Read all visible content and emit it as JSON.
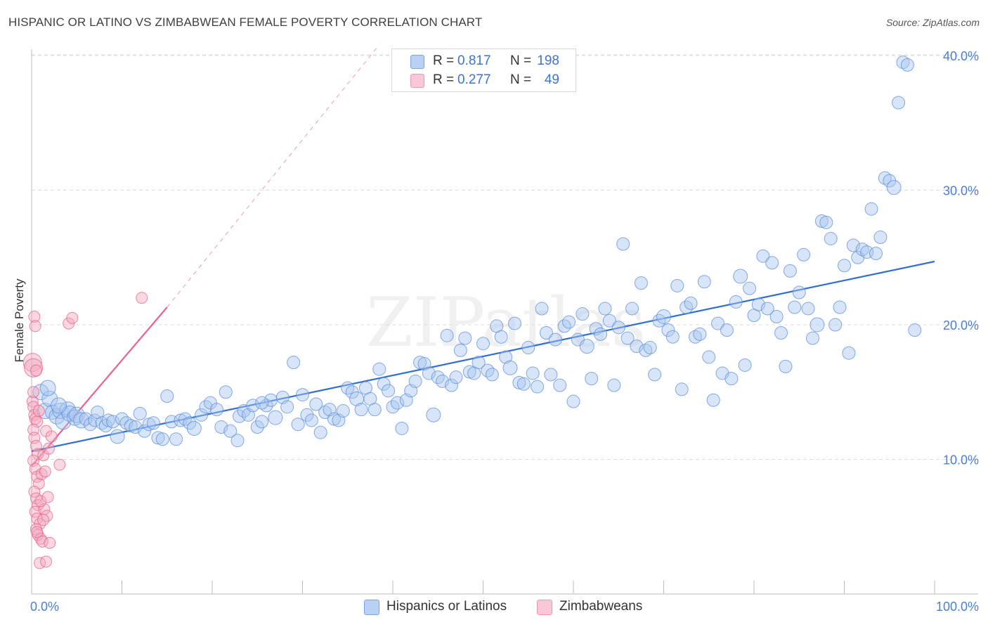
{
  "title": "HISPANIC OR LATINO VS ZIMBABWEAN FEMALE POVERTY CORRELATION CHART",
  "source": "Source: ZipAtlas.com",
  "watermark": "ZIPatlas",
  "legend": {
    "rows": [
      {
        "r_label": "R =",
        "r_value": "0.817",
        "n_label": "N =",
        "n_value": "198",
        "color": "#8fb5ea"
      },
      {
        "r_label": "R =",
        "r_value": "0.277",
        "n_label": "N =",
        "n_value": "49",
        "color": "#f2a8be"
      }
    ]
  },
  "bottom_legend": {
    "hispanic": "Hispanics or Latinos",
    "zimbabwean": "Zimbabweans"
  },
  "chart_data": {
    "type": "scatter",
    "title": "HISPANIC OR LATINO VS ZIMBABWEAN FEMALE POVERTY CORRELATION CHART",
    "xlabel": "",
    "ylabel": "Female Poverty",
    "xlim": [
      0,
      100
    ],
    "ylim": [
      0,
      40
    ],
    "x_tick_labels": [
      "0.0%",
      "100.0%"
    ],
    "y_ticks": [
      10,
      20,
      30,
      40
    ],
    "y_tick_labels": [
      "10.0%",
      "20.0%",
      "30.0%",
      "40.0%"
    ],
    "grid": true,
    "legend_position": "top-center",
    "series": [
      {
        "name": "Hispanics or Latinos",
        "color": "#5b8fd9",
        "fill": "#a9c6f0",
        "R": 0.817,
        "N": 198,
        "trend": {
          "x0": 0,
          "y0": 10.6,
          "x1": 100,
          "y1": 24.7,
          "dashed_extension": false
        },
        "points": [
          [
            1.0,
            15.0
          ],
          [
            1.5,
            13.6
          ],
          [
            2.0,
            14.5
          ],
          [
            2.3,
            13.5
          ],
          [
            2.8,
            13.2
          ],
          [
            3.2,
            13.6
          ],
          [
            3.5,
            12.8
          ],
          [
            4.0,
            13.7
          ],
          [
            4.2,
            13.4
          ],
          [
            4.8,
            13.1
          ],
          [
            5.0,
            13.3
          ],
          [
            5.5,
            12.9
          ],
          [
            6.0,
            13.0
          ],
          [
            6.5,
            12.6
          ],
          [
            7.0,
            12.9
          ],
          [
            7.3,
            13.5
          ],
          [
            7.8,
            12.7
          ],
          [
            8.2,
            12.5
          ],
          [
            8.5,
            12.9
          ],
          [
            9.0,
            12.8
          ],
          [
            9.5,
            11.7
          ],
          [
            10.0,
            13.0
          ],
          [
            10.5,
            12.7
          ],
          [
            11.0,
            12.5
          ],
          [
            11.5,
            12.4
          ],
          [
            12.0,
            13.4
          ],
          [
            12.5,
            12.1
          ],
          [
            13.0,
            12.6
          ],
          [
            13.5,
            12.7
          ],
          [
            14.0,
            11.6
          ],
          [
            14.5,
            11.5
          ],
          [
            15.0,
            14.7
          ],
          [
            15.5,
            12.8
          ],
          [
            16.0,
            11.5
          ],
          [
            16.5,
            12.9
          ],
          [
            17.0,
            13.0
          ],
          [
            17.5,
            12.7
          ],
          [
            18.0,
            12.3
          ],
          [
            18.8,
            13.3
          ],
          [
            19.3,
            13.9
          ],
          [
            19.8,
            14.2
          ],
          [
            20.5,
            13.7
          ],
          [
            21.0,
            12.4
          ],
          [
            21.5,
            15.0
          ],
          [
            22.0,
            12.1
          ],
          [
            22.8,
            11.4
          ],
          [
            23.0,
            13.2
          ],
          [
            23.5,
            13.6
          ],
          [
            24.0,
            13.3
          ],
          [
            24.5,
            14.0
          ],
          [
            25.0,
            12.4
          ],
          [
            25.5,
            12.8
          ],
          [
            26.0,
            14.0
          ],
          [
            26.5,
            14.4
          ],
          [
            27.0,
            13.1
          ],
          [
            27.8,
            14.6
          ],
          [
            28.3,
            13.9
          ],
          [
            29.0,
            17.2
          ],
          [
            29.5,
            12.6
          ],
          [
            30.0,
            14.8
          ],
          [
            30.5,
            13.3
          ],
          [
            31.0,
            12.9
          ],
          [
            31.5,
            14.1
          ],
          [
            32.0,
            12.0
          ],
          [
            32.5,
            13.5
          ],
          [
            33.0,
            13.7
          ],
          [
            33.5,
            13.0
          ],
          [
            34.0,
            12.9
          ],
          [
            34.5,
            13.6
          ],
          [
            35.0,
            15.3
          ],
          [
            35.5,
            15.0
          ],
          [
            36.0,
            14.5
          ],
          [
            36.5,
            13.7
          ],
          [
            37.0,
            15.3
          ],
          [
            37.5,
            14.5
          ],
          [
            38.0,
            13.7
          ],
          [
            38.5,
            16.7
          ],
          [
            39.0,
            15.6
          ],
          [
            39.5,
            15.1
          ],
          [
            40.0,
            13.9
          ],
          [
            40.5,
            14.2
          ],
          [
            41.0,
            12.3
          ],
          [
            41.5,
            14.4
          ],
          [
            42.0,
            15.1
          ],
          [
            42.5,
            15.8
          ],
          [
            43.0,
            17.2
          ],
          [
            43.5,
            17.1
          ],
          [
            44.0,
            16.4
          ],
          [
            44.5,
            13.3
          ],
          [
            45.0,
            16.1
          ],
          [
            45.5,
            15.8
          ],
          [
            46.0,
            19.2
          ],
          [
            46.5,
            15.5
          ],
          [
            47.0,
            16.1
          ],
          [
            47.5,
            18.1
          ],
          [
            48.0,
            19.0
          ],
          [
            48.5,
            16.5
          ],
          [
            49.0,
            16.4
          ],
          [
            49.5,
            17.2
          ],
          [
            50.0,
            18.6
          ],
          [
            50.5,
            16.6
          ],
          [
            51.0,
            16.3
          ],
          [
            51.5,
            19.9
          ],
          [
            52.0,
            19.1
          ],
          [
            52.5,
            17.6
          ],
          [
            53.0,
            16.8
          ],
          [
            53.5,
            20.1
          ],
          [
            54.0,
            15.7
          ],
          [
            54.5,
            15.6
          ],
          [
            55.0,
            18.3
          ],
          [
            55.5,
            16.4
          ],
          [
            56.0,
            15.4
          ],
          [
            56.5,
            21.2
          ],
          [
            57.0,
            19.4
          ],
          [
            57.5,
            16.3
          ],
          [
            58.0,
            18.9
          ],
          [
            58.5,
            15.5
          ],
          [
            59.0,
            19.9
          ],
          [
            59.5,
            20.2
          ],
          [
            60.0,
            14.3
          ],
          [
            60.5,
            18.9
          ],
          [
            61.0,
            20.8
          ],
          [
            61.5,
            18.4
          ],
          [
            62.0,
            16.0
          ],
          [
            62.5,
            19.7
          ],
          [
            63.0,
            19.3
          ],
          [
            63.5,
            21.2
          ],
          [
            64.0,
            20.3
          ],
          [
            64.5,
            15.5
          ],
          [
            65.0,
            19.8
          ],
          [
            65.5,
            26.0
          ],
          [
            66.0,
            19.0
          ],
          [
            66.5,
            21.2
          ],
          [
            67.0,
            18.4
          ],
          [
            67.5,
            23.1
          ],
          [
            68.0,
            18.1
          ],
          [
            68.5,
            18.3
          ],
          [
            69.0,
            16.3
          ],
          [
            69.5,
            20.3
          ],
          [
            70.0,
            20.6
          ],
          [
            70.5,
            19.6
          ],
          [
            71.0,
            19.1
          ],
          [
            71.5,
            22.9
          ],
          [
            72.0,
            15.2
          ],
          [
            72.5,
            21.3
          ],
          [
            73.0,
            21.6
          ],
          [
            73.5,
            19.1
          ],
          [
            74.0,
            19.3
          ],
          [
            74.5,
            23.2
          ],
          [
            75.0,
            17.6
          ],
          [
            75.5,
            14.4
          ],
          [
            76.0,
            20.1
          ],
          [
            76.5,
            16.4
          ],
          [
            77.0,
            19.6
          ],
          [
            77.5,
            16.0
          ],
          [
            78.0,
            21.7
          ],
          [
            78.5,
            23.6
          ],
          [
            79.0,
            17.0
          ],
          [
            79.5,
            22.7
          ],
          [
            80.0,
            20.7
          ],
          [
            80.5,
            21.5
          ],
          [
            81.0,
            25.1
          ],
          [
            81.5,
            21.2
          ],
          [
            82.0,
            24.6
          ],
          [
            82.5,
            20.6
          ],
          [
            83.0,
            19.4
          ],
          [
            83.5,
            16.9
          ],
          [
            84.0,
            24.0
          ],
          [
            84.5,
            21.3
          ],
          [
            85.0,
            22.4
          ],
          [
            85.5,
            25.2
          ],
          [
            86.0,
            21.2
          ],
          [
            86.5,
            19.0
          ],
          [
            87.0,
            20.0
          ],
          [
            87.5,
            27.7
          ],
          [
            88.0,
            27.6
          ],
          [
            88.5,
            26.4
          ],
          [
            89.0,
            20.0
          ],
          [
            89.5,
            21.3
          ],
          [
            90.0,
            24.4
          ],
          [
            90.5,
            17.9
          ],
          [
            91.0,
            25.9
          ],
          [
            91.5,
            25.0
          ],
          [
            92.0,
            25.6
          ],
          [
            92.5,
            25.4
          ],
          [
            93.0,
            28.6
          ],
          [
            93.5,
            25.3
          ],
          [
            94.0,
            26.5
          ],
          [
            94.5,
            30.9
          ],
          [
            95.0,
            30.7
          ],
          [
            95.5,
            30.2
          ],
          [
            96.0,
            36.5
          ],
          [
            96.5,
            39.5
          ],
          [
            97.0,
            39.3
          ],
          [
            97.8,
            19.6
          ],
          [
            1.8,
            15.3
          ],
          [
            3.0,
            14.0
          ],
          [
            25.5,
            14.2
          ]
        ]
      },
      {
        "name": "Zimbabweans",
        "color": "#e8628a",
        "fill": "#f2a8be",
        "R": 0.277,
        "N": 49,
        "trend": {
          "x0": 0,
          "y0": 9.5,
          "x1": 15,
          "y1": 21.3,
          "dashed_extension": true,
          "dash_to": [
            38.5,
            40.8
          ]
        },
        "points": [
          [
            0.1,
            17.2
          ],
          [
            0.2,
            16.8
          ],
          [
            0.3,
            20.6
          ],
          [
            0.4,
            19.9
          ],
          [
            0.5,
            16.6
          ],
          [
            0.1,
            14.3
          ],
          [
            0.2,
            13.9
          ],
          [
            0.3,
            13.3
          ],
          [
            0.4,
            13.0
          ],
          [
            0.6,
            12.8
          ],
          [
            0.2,
            12.2
          ],
          [
            0.3,
            11.6
          ],
          [
            0.5,
            11.0
          ],
          [
            0.7,
            10.4
          ],
          [
            0.2,
            9.9
          ],
          [
            0.4,
            9.3
          ],
          [
            0.6,
            8.7
          ],
          [
            0.8,
            8.2
          ],
          [
            0.3,
            7.6
          ],
          [
            0.5,
            7.1
          ],
          [
            0.7,
            6.6
          ],
          [
            0.4,
            6.1
          ],
          [
            0.6,
            5.6
          ],
          [
            0.9,
            5.2
          ],
          [
            0.5,
            4.8
          ],
          [
            0.7,
            4.4
          ],
          [
            1.0,
            4.1
          ],
          [
            1.2,
            3.9
          ],
          [
            0.9,
            2.3
          ],
          [
            1.6,
            2.4
          ],
          [
            1.4,
            6.3
          ],
          [
            1.7,
            5.8
          ],
          [
            1.1,
            8.9
          ],
          [
            1.5,
            9.1
          ],
          [
            1.3,
            10.3
          ],
          [
            1.9,
            10.8
          ],
          [
            1.6,
            12.1
          ],
          [
            2.2,
            11.7
          ],
          [
            3.1,
            9.6
          ],
          [
            4.1,
            20.1
          ],
          [
            4.5,
            20.5
          ],
          [
            12.2,
            22.0
          ],
          [
            0.8,
            13.6
          ],
          [
            1.0,
            6.9
          ],
          [
            1.8,
            7.2
          ],
          [
            0.6,
            4.6
          ],
          [
            1.3,
            5.5
          ],
          [
            2.0,
            3.8
          ],
          [
            0.2,
            15.0
          ]
        ]
      }
    ]
  }
}
